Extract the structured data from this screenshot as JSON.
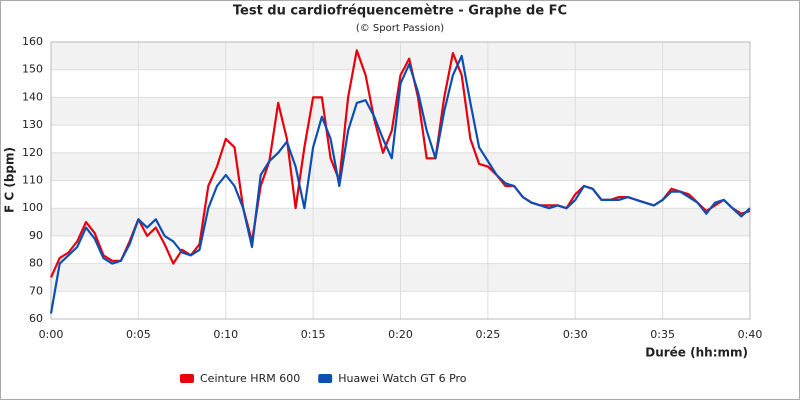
{
  "chart_data": {
    "type": "line",
    "title": "Test du cardiofréquencemètre - Graphe de FC",
    "subtitle": "(© Sport Passion)",
    "x_label": "Durée (hh:mm)",
    "y_label": "F C (bpm)",
    "x": [
      0,
      0.5,
      1,
      1.5,
      2,
      2.5,
      3,
      3.5,
      4,
      4.5,
      5,
      5.5,
      6,
      6.5,
      7,
      7.5,
      8,
      8.5,
      9,
      9.5,
      10,
      10.5,
      11,
      11.5,
      12,
      12.5,
      13,
      13.5,
      14,
      14.5,
      15,
      15.5,
      16,
      16.5,
      17,
      17.5,
      18,
      18.5,
      19,
      19.5,
      20,
      20.5,
      21,
      21.5,
      22,
      22.5,
      23,
      23.5,
      24,
      24.5,
      25,
      25.5,
      26,
      26.5,
      27,
      27.5,
      28,
      28.5,
      29,
      29.5,
      30,
      30.5,
      31,
      31.5,
      32,
      32.5,
      33,
      33.5,
      34,
      34.5,
      35,
      35.5,
      36,
      36.5,
      37,
      37.5,
      38,
      38.5,
      39,
      39.5,
      40
    ],
    "series": [
      {
        "name": "Ceinture HRM 600",
        "color": "#e8000b",
        "values": [
          75,
          82,
          84,
          88,
          95,
          91,
          83,
          81,
          81,
          88,
          96,
          90,
          93,
          87,
          80,
          85,
          83,
          87,
          108,
          115,
          125,
          122,
          100,
          88,
          108,
          117,
          138,
          125,
          100,
          122,
          140,
          140,
          118,
          110,
          140,
          157,
          148,
          132,
          120,
          128,
          148,
          154,
          140,
          118,
          118,
          140,
          156,
          148,
          125,
          116,
          115,
          112,
          108,
          108,
          104,
          102,
          101,
          101,
          101,
          100,
          105,
          108,
          107,
          103,
          103,
          104,
          104,
          103,
          102,
          101,
          103,
          107,
          106,
          105,
          102,
          99,
          101,
          103,
          100,
          98,
          99
        ]
      },
      {
        "name": "Huawei Watch GT 6 Pro",
        "color": "#0b4fb5",
        "values": [
          62,
          80,
          83,
          86,
          93,
          89,
          82,
          80,
          81,
          87,
          96,
          93,
          96,
          90,
          88,
          84,
          83,
          85,
          100,
          108,
          112,
          108,
          100,
          86,
          112,
          117,
          120,
          124,
          115,
          100,
          122,
          133,
          125,
          108,
          128,
          138,
          139,
          133,
          125,
          118,
          145,
          152,
          142,
          128,
          118,
          135,
          148,
          155,
          138,
          122,
          117,
          112,
          109,
          108,
          104,
          102,
          101,
          100,
          101,
          100,
          103,
          108,
          107,
          103,
          103,
          103,
          104,
          103,
          102,
          101,
          103,
          106,
          106,
          104,
          102,
          98,
          102,
          103,
          100,
          97,
          100
        ]
      }
    ],
    "xlim": [
      0,
      40
    ],
    "xticks": [
      {
        "value": 0,
        "label": "0:00"
      },
      {
        "value": 5,
        "label": "0:05"
      },
      {
        "value": 10,
        "label": "0:10"
      },
      {
        "value": 15,
        "label": "0:15"
      },
      {
        "value": 20,
        "label": "0:20"
      },
      {
        "value": 25,
        "label": "0:25"
      },
      {
        "value": 30,
        "label": "0:30"
      },
      {
        "value": 35,
        "label": "0:35"
      },
      {
        "value": 40,
        "label": "0:40"
      }
    ],
    "ylim": [
      60,
      160
    ],
    "yticks": [
      60,
      70,
      80,
      90,
      100,
      110,
      120,
      130,
      140,
      150,
      160
    ],
    "grid": true,
    "legend": "bottom"
  }
}
